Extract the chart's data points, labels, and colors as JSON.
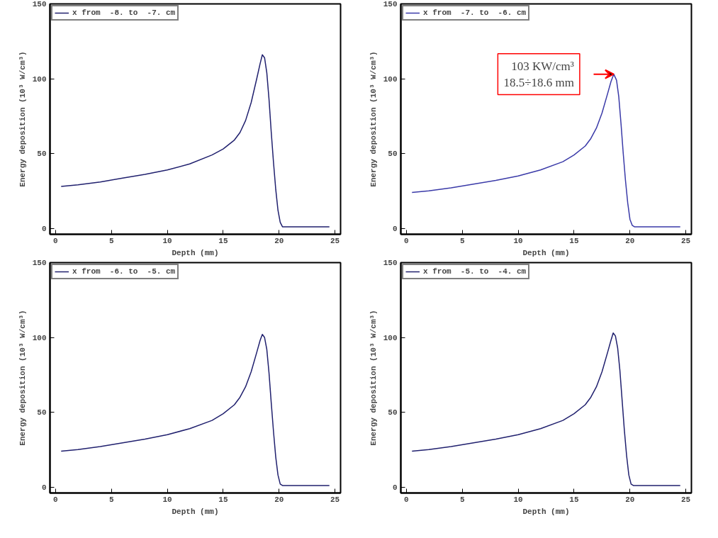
{
  "chart_data": [
    {
      "type": "line",
      "xlabel": "Depth (mm)",
      "ylabel": "Energy deposition (10³ W/cm³)",
      "xlim": [
        -0.5,
        25.5
      ],
      "ylim": [
        -4,
        150
      ],
      "xticks": [
        0,
        5,
        10,
        15,
        20,
        25
      ],
      "yticks": [
        0,
        50,
        100,
        150
      ],
      "legend": "top left",
      "grid": false,
      "series": [
        {
          "name": "x from  -8. to  -7. cm",
          "color": "#20206e",
          "x": [
            0.5,
            2,
            4,
            6,
            8,
            10,
            12,
            14,
            15,
            16,
            16.5,
            17,
            17.5,
            18,
            18.3,
            18.5,
            18.7,
            18.9,
            19.1,
            19.3,
            19.5,
            19.7,
            19.9,
            20.1,
            20.3,
            22,
            24.5
          ],
          "values": [
            28,
            29,
            31,
            33.5,
            36,
            39,
            43,
            49,
            53,
            59,
            64,
            72,
            84,
            100,
            110,
            116,
            114,
            104,
            86,
            64,
            44,
            26,
            12,
            4,
            1,
            1,
            1
          ]
        }
      ]
    },
    {
      "type": "line",
      "xlabel": "Depth (mm)",
      "ylabel": "Energy deposition (10³ W/cm³)",
      "xlim": [
        -0.5,
        25.5
      ],
      "ylim": [
        -4,
        150
      ],
      "xticks": [
        0,
        5,
        10,
        15,
        20,
        25
      ],
      "yticks": [
        0,
        50,
        100,
        150
      ],
      "legend": "top left",
      "grid": false,
      "annotations": [
        "103 KW/cm³\n18.5÷18.6 mm"
      ],
      "series": [
        {
          "name": "x from  -7. to  -6. cm",
          "color": "#3a3aa8",
          "x": [
            0.5,
            2,
            4,
            6,
            8,
            10,
            12,
            14,
            15,
            16,
            16.5,
            17,
            17.5,
            18,
            18.3,
            18.55,
            18.8,
            19,
            19.2,
            19.4,
            19.6,
            19.8,
            20,
            20.2,
            20.4,
            22,
            24.5
          ],
          "values": [
            24,
            25,
            27,
            29.5,
            32,
            35,
            39,
            44.5,
            49,
            55,
            60,
            67,
            77,
            90,
            98,
            103,
            99,
            88,
            70,
            50,
            32,
            17,
            6,
            2,
            1,
            1,
            1
          ]
        }
      ]
    },
    {
      "type": "line",
      "xlabel": "Depth (mm)",
      "ylabel": "Energy deposition (10³ W/cm³)",
      "xlim": [
        -0.5,
        25.5
      ],
      "ylim": [
        -4,
        150
      ],
      "xticks": [
        0,
        5,
        10,
        15,
        20,
        25
      ],
      "yticks": [
        0,
        50,
        100,
        150
      ],
      "legend": "top left",
      "grid": false,
      "series": [
        {
          "name": "x from  -6. to  -5. cm",
          "color": "#20206e",
          "x": [
            0.5,
            2,
            4,
            6,
            8,
            10,
            12,
            14,
            15,
            16,
            16.5,
            17,
            17.5,
            18,
            18.3,
            18.5,
            18.7,
            18.9,
            19.1,
            19.3,
            19.5,
            19.7,
            19.9,
            20.1,
            20.3,
            22,
            24.5
          ],
          "values": [
            24,
            25,
            27,
            29.5,
            32,
            35,
            39,
            44.5,
            49,
            55,
            60,
            67,
            77,
            90,
            98,
            102,
            100,
            92,
            76,
            56,
            37,
            20,
            8,
            2,
            1,
            1,
            1
          ]
        }
      ]
    },
    {
      "type": "line",
      "xlabel": "Depth (mm)",
      "ylabel": "Energy deposition (10³ W/cm³)",
      "xlim": [
        -0.5,
        25.5
      ],
      "ylim": [
        -4,
        150
      ],
      "xticks": [
        0,
        5,
        10,
        15,
        20,
        25
      ],
      "yticks": [
        0,
        50,
        100,
        150
      ],
      "legend": "top left",
      "grid": false,
      "series": [
        {
          "name": "x from  -5. to  -4. cm",
          "color": "#20206e",
          "x": [
            0.5,
            2,
            4,
            6,
            8,
            10,
            12,
            14,
            15,
            16,
            16.5,
            17,
            17.5,
            18,
            18.3,
            18.5,
            18.7,
            18.9,
            19.1,
            19.3,
            19.5,
            19.7,
            19.9,
            20.1,
            20.3,
            22,
            24.5
          ],
          "values": [
            24,
            25,
            27,
            29.5,
            32,
            35,
            39,
            44.5,
            49,
            55,
            60,
            67,
            77,
            90,
            98,
            103,
            101,
            93,
            78,
            58,
            38,
            21,
            8,
            2,
            1,
            1,
            1
          ]
        }
      ]
    }
  ]
}
